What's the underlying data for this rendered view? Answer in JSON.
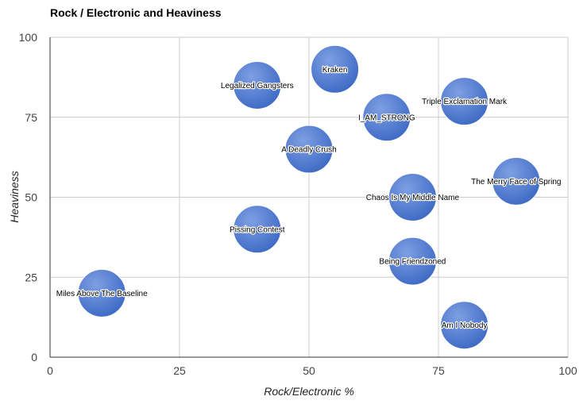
{
  "chart_data": {
    "type": "scatter",
    "title": "Rock / Electronic and Heaviness",
    "xlabel": "Rock/Electronic %",
    "ylabel": "Heaviness",
    "xlim": [
      0,
      100
    ],
    "ylim": [
      0,
      100
    ],
    "xticks": [
      0,
      25,
      50,
      75,
      100
    ],
    "yticks": [
      0,
      25,
      50,
      75,
      100
    ],
    "grid": true,
    "bubble_color": "#4472c4",
    "series": [
      {
        "points": [
          {
            "label": "Kraken",
            "x": 55,
            "y": 90
          },
          {
            "label": "Legalized Gangsters",
            "x": 40,
            "y": 85
          },
          {
            "label": "Triple Exclamation Mark",
            "x": 80,
            "y": 80
          },
          {
            "label": "I_AM_STRONG",
            "x": 65,
            "y": 75
          },
          {
            "label": "A Deadly Crush",
            "x": 50,
            "y": 65
          },
          {
            "label": "The Merry Face of Spring",
            "x": 90,
            "y": 55
          },
          {
            "label": "Chaos Is My Middle Name",
            "x": 70,
            "y": 50
          },
          {
            "label": "Pissing Contest",
            "x": 40,
            "y": 40
          },
          {
            "label": "Being Friendzoned",
            "x": 70,
            "y": 30
          },
          {
            "label": "Miles Above The Baseline",
            "x": 10,
            "y": 20
          },
          {
            "label": "Am I Nobody",
            "x": 80,
            "y": 10
          }
        ]
      }
    ]
  }
}
